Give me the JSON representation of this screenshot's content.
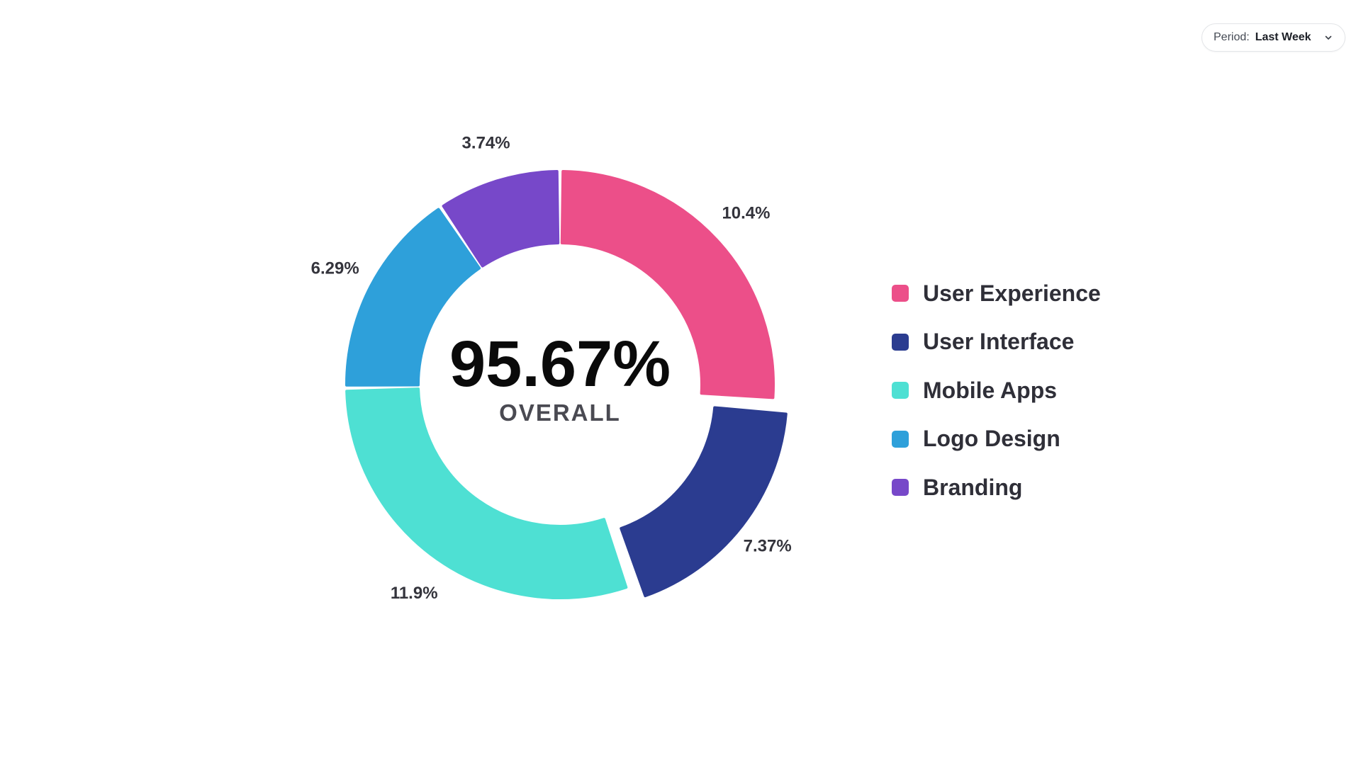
{
  "period": {
    "label": "Period:",
    "value": "Last Week",
    "icon": "chevron-down-icon"
  },
  "center": {
    "value": "95.67%",
    "caption": "OVERALL"
  },
  "chart_data": {
    "type": "pie",
    "variant": "donut",
    "categories": [
      "User Experience",
      "User Interface",
      "Mobile Apps",
      "Logo Design",
      "Branding"
    ],
    "values": [
      10.4,
      7.37,
      11.9,
      6.29,
      3.74
    ],
    "value_labels": [
      "10.4%",
      "7.37%",
      "11.9%",
      "6.29%",
      "3.74%"
    ],
    "colors": [
      "#ec4f89",
      "#2b3c90",
      "#4ee0d3",
      "#2ea0da",
      "#7748c9"
    ],
    "exploded": "User Interface",
    "legend_position": "right"
  }
}
